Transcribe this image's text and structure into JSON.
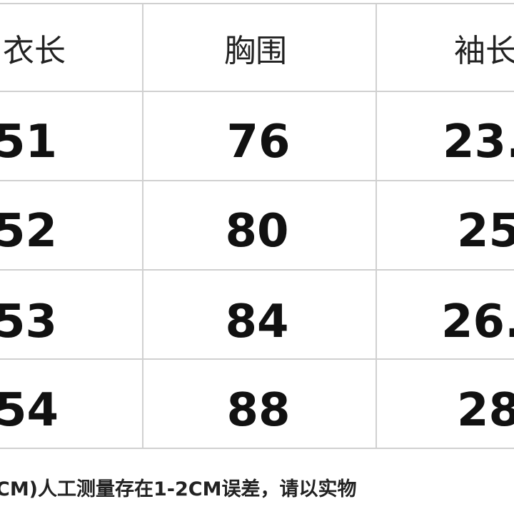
{
  "table": {
    "header": [
      "衣长",
      "胸围",
      "袖长"
    ],
    "rows": [
      [
        "51",
        "76",
        "23."
      ],
      [
        "52",
        "80",
        "25"
      ],
      [
        "53",
        "84",
        "26."
      ],
      [
        "54",
        "88",
        "28"
      ]
    ],
    "note": "CM)人工测量存在1-2CM误差，请以实物"
  }
}
